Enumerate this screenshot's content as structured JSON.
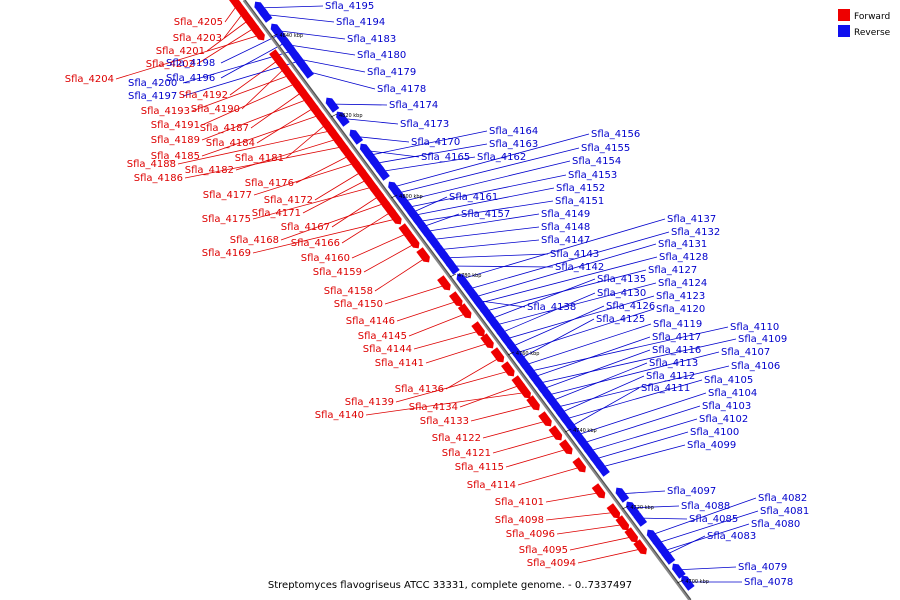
{
  "legend": {
    "forward_label": "Forward",
    "reverse_label": "Reverse",
    "forward_color": "#ee0000",
    "reverse_color": "#1010ee"
  },
  "caption": "Streptomyces flavogriseus ATCC 33331, complete genome. - 0..7337497",
  "ticks": [
    "4840 kbp",
    "4820 kbp",
    "4800 kbp",
    "4780 kbp",
    "4760 kbp",
    "4740 kbp",
    "4720 kbp",
    "4700 kbp"
  ],
  "forward_genes": [
    "Sfla_4205",
    "Sfla_4203",
    "Sfla_4201",
    "Sfla_4202",
    "Sfla_4204",
    "Sfla_4192",
    "Sfla_4190",
    "Sfla_4193",
    "Sfla_4191",
    "Sfla_4187",
    "Sfla_4189",
    "Sfla_4184",
    "Sfla_4185",
    "Sfla_4181",
    "Sfla_4188",
    "Sfla_4182",
    "Sfla_4186",
    "Sfla_4176",
    "Sfla_4177",
    "Sfla_4172",
    "Sfla_4171",
    "Sfla_4175",
    "Sfla_4167",
    "Sfla_4168",
    "Sfla_4166",
    "Sfla_4169",
    "Sfla_4160",
    "Sfla_4159",
    "Sfla_4158",
    "Sfla_4150",
    "Sfla_4146",
    "Sfla_4145",
    "Sfla_4144",
    "Sfla_4141",
    "Sfla_4136",
    "Sfla_4139",
    "Sfla_4134",
    "Sfla_4140",
    "Sfla_4133",
    "Sfla_4122",
    "Sfla_4121",
    "Sfla_4115",
    "Sfla_4114",
    "Sfla_4101",
    "Sfla_4098",
    "Sfla_4096",
    "Sfla_4095",
    "Sfla_4094"
  ],
  "reverse_genes": [
    "Sfla_4195",
    "Sfla_4194",
    "Sfla_4183",
    "Sfla_4180",
    "Sfla_4179",
    "Sfla_4178",
    "Sfla_4198",
    "Sfla_4196",
    "Sfla_4200",
    "Sfla_4197",
    "Sfla_4174",
    "Sfla_4173",
    "Sfla_4170",
    "Sfla_4165",
    "Sfla_4164",
    "Sfla_4163",
    "Sfla_4162",
    "Sfla_4156",
    "Sfla_4155",
    "Sfla_4154",
    "Sfla_4153",
    "Sfla_4152",
    "Sfla_4151",
    "Sfla_4161",
    "Sfla_4157",
    "Sfla_4149",
    "Sfla_4148",
    "Sfla_4147",
    "Sfla_4143",
    "Sfla_4142",
    "Sfla_4137",
    "Sfla_4132",
    "Sfla_4131",
    "Sfla_4128",
    "Sfla_4127",
    "Sfla_4135",
    "Sfla_4124",
    "Sfla_4130",
    "Sfla_4123",
    "Sfla_4138",
    "Sfla_4126",
    "Sfla_4120",
    "Sfla_4125",
    "Sfla_4119",
    "Sfla_4110",
    "Sfla_4117",
    "Sfla_4109",
    "Sfla_4116",
    "Sfla_4107",
    "Sfla_4113",
    "Sfla_4106",
    "Sfla_4112",
    "Sfla_4105",
    "Sfla_4111",
    "Sfla_4104",
    "Sfla_4103",
    "Sfla_4102",
    "Sfla_4100",
    "Sfla_4099",
    "Sfla_4097",
    "Sfla_4088",
    "Sfla_4085",
    "Sfla_4082",
    "Sfla_4081",
    "Sfla_4080",
    "Sfla_4083",
    "Sfla_4079",
    "Sfla_4078"
  ]
}
